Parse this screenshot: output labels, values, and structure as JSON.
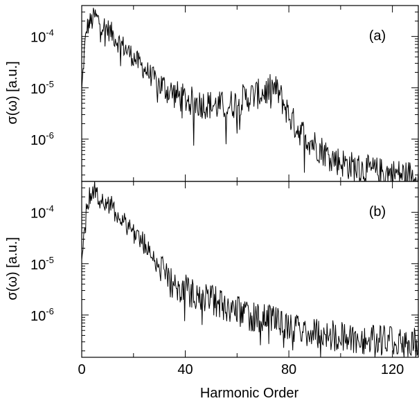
{
  "chart_data": {
    "type": "line",
    "xlabel": "Harmonic Order",
    "ylabel": "σ(ω) [a.u.]",
    "xlim": [
      0,
      130
    ],
    "x_ticks": [
      "0",
      "40",
      "80",
      "120"
    ],
    "y_scale": "log",
    "ylim": [
      1.5e-07,
      0.0004
    ],
    "y_ticks": [
      {
        "base": "10",
        "exp": "-4"
      },
      {
        "base": "10",
        "exp": "-5"
      },
      {
        "base": "10",
        "exp": "-6"
      }
    ],
    "grid": false,
    "panels": [
      {
        "label": "(a)",
        "series": [
          {
            "color": "#000000",
            "x": [
              0,
              1,
              2,
              3,
              4,
              5,
              6,
              7,
              8,
              10,
              12,
              14,
              16,
              18,
              20,
              22,
              24,
              26,
              28,
              30,
              32,
              34,
              36,
              38,
              40,
              42,
              44,
              46,
              48,
              50,
              52,
              54,
              56,
              58,
              60,
              62,
              64,
              66,
              68,
              70,
              72,
              74,
              76,
              78,
              80,
              82,
              84,
              86,
              88,
              90,
              92,
              94,
              96,
              98,
              100,
              102,
              104,
              106,
              108,
              110,
              112,
              114,
              116,
              118,
              120,
              122,
              124,
              126,
              128,
              130
            ],
            "y": [
              8e-06,
              5e-05,
              0.00015,
              0.00018,
              0.0002,
              0.00025,
              0.00022,
              0.00019,
              0.00017,
              0.00014,
              0.00011,
              8e-05,
              6.5e-05,
              5e-05,
              4e-05,
              3e-05,
              2.4e-05,
              1.9e-05,
              1.5e-05,
              1.2e-05,
              1e-05,
              8.5e-06,
              7.5e-06,
              6.5e-06,
              6e-06,
              5.5e-06,
              5.2e-06,
              5e-06,
              4.8e-06,
              4.6e-06,
              4.5e-06,
              4.4e-06,
              4.5e-06,
              4.8e-06,
              5.2e-06,
              6e-06,
              6.5e-06,
              7e-06,
              7.5e-06,
              8e-06,
              9e-06,
              1e-05,
              8e-06,
              5e-06,
              3e-06,
              2e-06,
              1.5e-06,
              1.2e-06,
              9.5e-07,
              8e-07,
              6.5e-07,
              5.5e-07,
              4.5e-07,
              4e-07,
              3.6e-07,
              3.3e-07,
              3e-07,
              2.8e-07,
              2.6e-07,
              2.5e-07,
              2.4e-07,
              2.3e-07,
              2.2e-07,
              2.2e-07,
              2.1e-07,
              2.1e-07,
              2e-07,
              2e-07,
              2e-07,
              2e-07
            ]
          }
        ]
      },
      {
        "label": "(b)",
        "series": [
          {
            "color": "#000000",
            "x": [
              0,
              1,
              2,
              3,
              4,
              5,
              6,
              7,
              8,
              10,
              12,
              14,
              16,
              18,
              20,
              22,
              24,
              26,
              28,
              30,
              32,
              34,
              36,
              38,
              40,
              42,
              44,
              46,
              48,
              50,
              52,
              54,
              56,
              58,
              60,
              62,
              64,
              66,
              68,
              70,
              72,
              74,
              76,
              78,
              80,
              82,
              84,
              86,
              88,
              90,
              92,
              94,
              96,
              98,
              100,
              102,
              104,
              106,
              108,
              110,
              112,
              114,
              116,
              118,
              120,
              122,
              124,
              126,
              128,
              130
            ],
            "y": [
              8e-06,
              6e-05,
              0.00016,
              0.0002,
              0.00024,
              0.00028,
              0.00024,
              0.00021,
              0.00018,
              0.00015,
              0.00012,
              9e-05,
              7e-05,
              5.5e-05,
              4.2e-05,
              3.2e-05,
              2.5e-05,
              1.8e-05,
              1.3e-05,
              9e-06,
              6e-06,
              4.5e-06,
              3.8e-06,
              3.4e-06,
              3.1e-06,
              2.8e-06,
              2.6e-06,
              2.4e-06,
              2.2e-06,
              2e-06,
              1.8e-06,
              1.6e-06,
              1.4e-06,
              1.3e-06,
              1.2e-06,
              1.1e-06,
              1e-06,
              9.5e-07,
              9e-07,
              8.5e-07,
              8e-07,
              7.5e-07,
              7e-07,
              6.5e-07,
              6e-07,
              5.5e-07,
              5.2e-07,
              5e-07,
              4.8e-07,
              4.6e-07,
              4.4e-07,
              4.2e-07,
              4e-07,
              3.9e-07,
              3.8e-07,
              3.7e-07,
              3.6e-07,
              3.5e-07,
              3.4e-07,
              3.4e-07,
              3.3e-07,
              3.3e-07,
              3.2e-07,
              3.2e-07,
              3.1e-07,
              3.1e-07,
              3e-07,
              3e-07,
              3e-07,
              3e-07
            ]
          }
        ]
      }
    ]
  }
}
